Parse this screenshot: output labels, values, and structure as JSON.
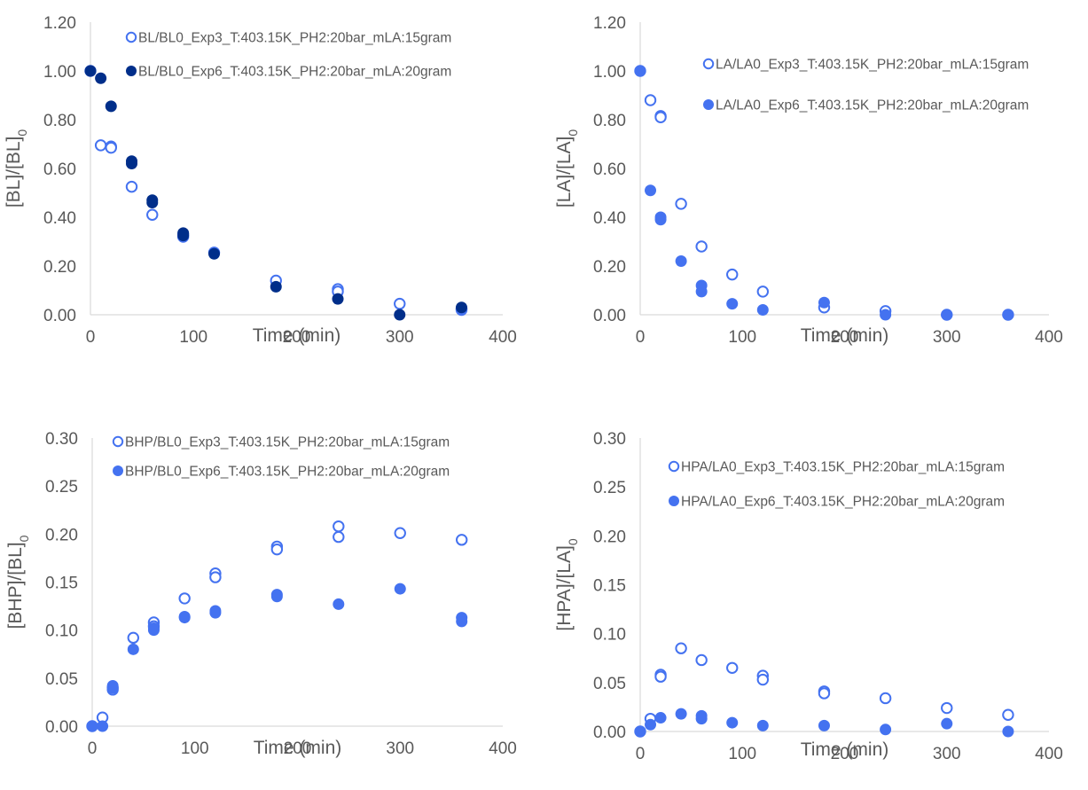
{
  "colors": {
    "light": "#4472F0",
    "dark": "#002E8A",
    "axis": "#D9D9D9",
    "text": "#595959"
  },
  "chart_data": [
    {
      "type": "scatter",
      "xlabel": "Time (min)",
      "ylabel": "[BL]/[BL]",
      "ylabel_sub": "0",
      "xlim": [
        0,
        400
      ],
      "ylim": [
        0,
        1.2
      ],
      "xticks": [
        "0",
        "100",
        "200",
        "300",
        "400"
      ],
      "yticks": [
        "0.00",
        "0.20",
        "0.40",
        "0.60",
        "0.80",
        "1.00",
        "1.20"
      ],
      "grid": false,
      "legend_position": "top-right",
      "series": [
        {
          "name": "BL/BL0_Exp3_T:403.15K_PH2:20bar_mLA:15gram",
          "marker": "open",
          "color": "#4472F0",
          "x": [
            0,
            10,
            20,
            20,
            40,
            60,
            90,
            90,
            120,
            180,
            240,
            240,
            300,
            360,
            360
          ],
          "y": [
            1.0,
            0.695,
            0.69,
            0.685,
            0.525,
            0.41,
            0.32,
            0.33,
            0.255,
            0.14,
            0.105,
            0.095,
            0.045,
            0.02,
            0.025
          ]
        },
        {
          "name": "BL/BL0_Exp6_T:403.15K_PH2:20bar_mLA:20gram",
          "marker": "filled",
          "color": "#002E8A",
          "x": [
            0,
            10,
            20,
            40,
            40,
            60,
            60,
            90,
            90,
            120,
            180,
            240,
            300,
            360
          ],
          "y": [
            1.0,
            0.97,
            0.855,
            0.63,
            0.62,
            0.47,
            0.46,
            0.335,
            0.325,
            0.25,
            0.115,
            0.065,
            0.0,
            0.03
          ]
        }
      ]
    },
    {
      "type": "scatter",
      "xlabel": "Time (min)",
      "ylabel": "[LA]/[LA]",
      "ylabel_sub": "0",
      "xlim": [
        0,
        400
      ],
      "ylim": [
        0,
        1.2
      ],
      "xticks": [
        "0",
        "100",
        "200",
        "300",
        "400"
      ],
      "yticks": [
        "0.00",
        "0.20",
        "0.40",
        "0.60",
        "0.80",
        "1.00",
        "1.20"
      ],
      "grid": false,
      "legend_position": "top-right",
      "series": [
        {
          "name": "LA/LA0_Exp3_T:403.15K_PH2:20bar_mLA:15gram",
          "marker": "open",
          "color": "#4472F0",
          "x": [
            0,
            10,
            20,
            20,
            40,
            60,
            90,
            120,
            180,
            240,
            300,
            360
          ],
          "y": [
            1.0,
            0.88,
            0.815,
            0.81,
            0.455,
            0.28,
            0.165,
            0.095,
            0.03,
            0.015,
            0.0,
            0.0
          ],
          "note_dup": []
        },
        {
          "name": "LA/LA0_Exp6_T:403.15K_PH2:20bar_mLA:20gram",
          "marker": "filled",
          "color": "#4472F0",
          "x": [
            0,
            10,
            20,
            20,
            40,
            60,
            60,
            90,
            120,
            180,
            240,
            300,
            360
          ],
          "y": [
            1.0,
            0.51,
            0.4,
            0.39,
            0.22,
            0.12,
            0.095,
            0.045,
            0.02,
            0.05,
            0.0,
            0.0,
            0.0
          ]
        }
      ]
    },
    {
      "type": "scatter",
      "xlabel": "Time (min)",
      "ylabel": "[BHP]/[BL]",
      "ylabel_sub": "0",
      "xlim": [
        0,
        400
      ],
      "ylim": [
        0,
        0.3
      ],
      "xticks": [
        "0",
        "100",
        "200",
        "300",
        "400"
      ],
      "yticks": [
        "0.00",
        "0.05",
        "0.10",
        "0.15",
        "0.20",
        "0.25",
        "0.30"
      ],
      "grid": false,
      "legend_position": "top-right",
      "series": [
        {
          "name": "BHP/BL0_Exp3_T:403.15K_PH2:20bar_mLA:15gram",
          "marker": "open",
          "color": "#4472F0",
          "x": [
            0,
            10,
            20,
            20,
            40,
            60,
            60,
            90,
            120,
            120,
            180,
            180,
            240,
            240,
            300,
            360
          ],
          "y": [
            0.0,
            0.009,
            0.038,
            0.04,
            0.092,
            0.108,
            0.104,
            0.133,
            0.159,
            0.155,
            0.187,
            0.184,
            0.208,
            0.197,
            0.201,
            0.194
          ]
        },
        {
          "name": "BHP/BL0_Exp6_T:403.15K_PH2:20bar_mLA:20gram",
          "marker": "filled",
          "color": "#4472F0",
          "x": [
            0,
            10,
            20,
            20,
            40,
            60,
            60,
            90,
            90,
            120,
            120,
            180,
            180,
            240,
            300,
            360,
            360
          ],
          "y": [
            0.0,
            0.0,
            0.042,
            0.04,
            0.08,
            0.1,
            0.102,
            0.114,
            0.113,
            0.12,
            0.118,
            0.137,
            0.135,
            0.127,
            0.143,
            0.113,
            0.109
          ]
        }
      ]
    },
    {
      "type": "scatter",
      "xlabel": "Time (min)",
      "ylabel": "[HPA]/[LA]",
      "ylabel_sub": "0",
      "xlim": [
        0,
        400
      ],
      "ylim": [
        0,
        0.3
      ],
      "xticks": [
        "0",
        "100",
        "200",
        "300",
        "400"
      ],
      "yticks": [
        "0.00",
        "0.05",
        "0.10",
        "0.15",
        "0.20",
        "0.25",
        "0.30"
      ],
      "grid": false,
      "legend_position": "top-right",
      "series": [
        {
          "name": "HPA/LA0_Exp3_T:403.15K_PH2:20bar_mLA:15gram",
          "marker": "open",
          "color": "#4472F0",
          "x": [
            0,
            10,
            20,
            20,
            40,
            60,
            90,
            120,
            120,
            180,
            180,
            240,
            300,
            360
          ],
          "y": [
            0.0,
            0.013,
            0.058,
            0.056,
            0.085,
            0.073,
            0.065,
            0.057,
            0.053,
            0.041,
            0.039,
            0.034,
            0.024,
            0.017
          ]
        },
        {
          "name": "HPA/LA0_Exp6_T:403.15K_PH2:20bar_mLA:20gram",
          "marker": "filled",
          "color": "#4472F0",
          "x": [
            0,
            10,
            20,
            40,
            60,
            60,
            90,
            120,
            180,
            240,
            300,
            360
          ],
          "y": [
            0.0,
            0.007,
            0.014,
            0.018,
            0.016,
            0.013,
            0.009,
            0.006,
            0.006,
            0.002,
            0.008,
            0.0
          ]
        }
      ]
    }
  ]
}
